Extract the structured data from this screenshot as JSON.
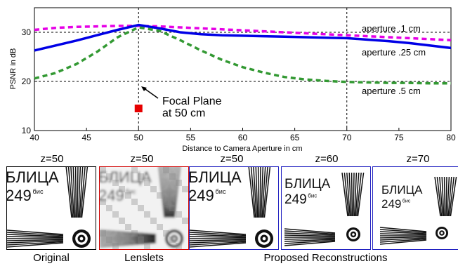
{
  "chart_data": {
    "type": "line",
    "title": "",
    "xlabel": "Distance to Camera Aperture in cm",
    "ylabel": "PSNR in dB",
    "xlim": [
      40,
      80
    ],
    "ylim": [
      10,
      35
    ],
    "xticks": [
      40,
      45,
      50,
      55,
      60,
      65,
      70,
      75,
      80
    ],
    "yticks": [
      10,
      20,
      30
    ],
    "grid": "dashed vertical at 50 and 70, dashed horizontal at 30 and 20",
    "series": [
      {
        "name": "aperture .1 cm",
        "color": "#e600e6",
        "style": "dashed",
        "x": [
          40,
          42,
          44,
          46,
          48,
          50,
          52,
          54,
          56,
          58,
          60,
          62,
          64,
          66,
          68,
          70,
          72,
          74,
          76,
          78,
          80
        ],
        "y": [
          30.5,
          30.9,
          31.1,
          31.2,
          31.3,
          31.3,
          31.2,
          31.0,
          30.8,
          30.6,
          30.4,
          30.2,
          30.0,
          29.8,
          29.6,
          29.4,
          29.2,
          29.0,
          28.8,
          28.6,
          28.4
        ]
      },
      {
        "name": "aperture .25 cm",
        "color": "#0000e6",
        "style": "solid",
        "x": [
          40,
          42,
          44,
          46,
          48,
          50,
          52,
          54,
          56,
          58,
          60,
          62,
          64,
          66,
          68,
          70,
          72,
          74,
          76,
          78,
          80
        ],
        "y": [
          26.3,
          27.3,
          28.3,
          29.4,
          30.5,
          31.5,
          30.8,
          30.0,
          29.6,
          29.4,
          29.3,
          29.2,
          29.1,
          29.0,
          28.9,
          28.8,
          28.5,
          28.2,
          27.8,
          27.3,
          26.8
        ]
      },
      {
        "name": "aperture .5 cm",
        "color": "#339933",
        "style": "dashed",
        "x": [
          40,
          42,
          44,
          46,
          48,
          50,
          52,
          54,
          56,
          58,
          60,
          62,
          64,
          66,
          68,
          70,
          72,
          74,
          76,
          78,
          80
        ],
        "y": [
          20.6,
          21.7,
          23.5,
          26.0,
          29.0,
          31.0,
          30.3,
          28.4,
          26.3,
          24.4,
          22.9,
          21.8,
          20.9,
          20.4,
          20.1,
          19.9,
          19.8,
          19.7,
          19.7,
          19.6,
          19.6
        ]
      }
    ],
    "marker": {
      "x": 50,
      "y": 14.5,
      "color": "#e60000"
    },
    "annotation": {
      "line1": "Focal Plane",
      "line2": "at 50 cm"
    },
    "series_labels": [
      "aperture .1 cm",
      "aperture .25 cm",
      "aperture .5 cm"
    ]
  },
  "panels": [
    {
      "title": "z=50",
      "kind": "original",
      "border": "#000000"
    },
    {
      "title": "z=50",
      "kind": "lenslets",
      "border": "#d00000"
    },
    {
      "title": "z=50",
      "kind": "recon",
      "border": "#2020c0"
    },
    {
      "title": "z=60",
      "kind": "recon",
      "border": "#2020c0"
    },
    {
      "title": "z=70",
      "kind": "recon",
      "border": "#2020c0"
    }
  ],
  "panel_text": {
    "line1": "БЛИЦА",
    "num": "249",
    "sup": "бис"
  },
  "captions": {
    "original": "Original",
    "lenslets": "Lenslets",
    "proposed": "Proposed Reconstructions"
  }
}
